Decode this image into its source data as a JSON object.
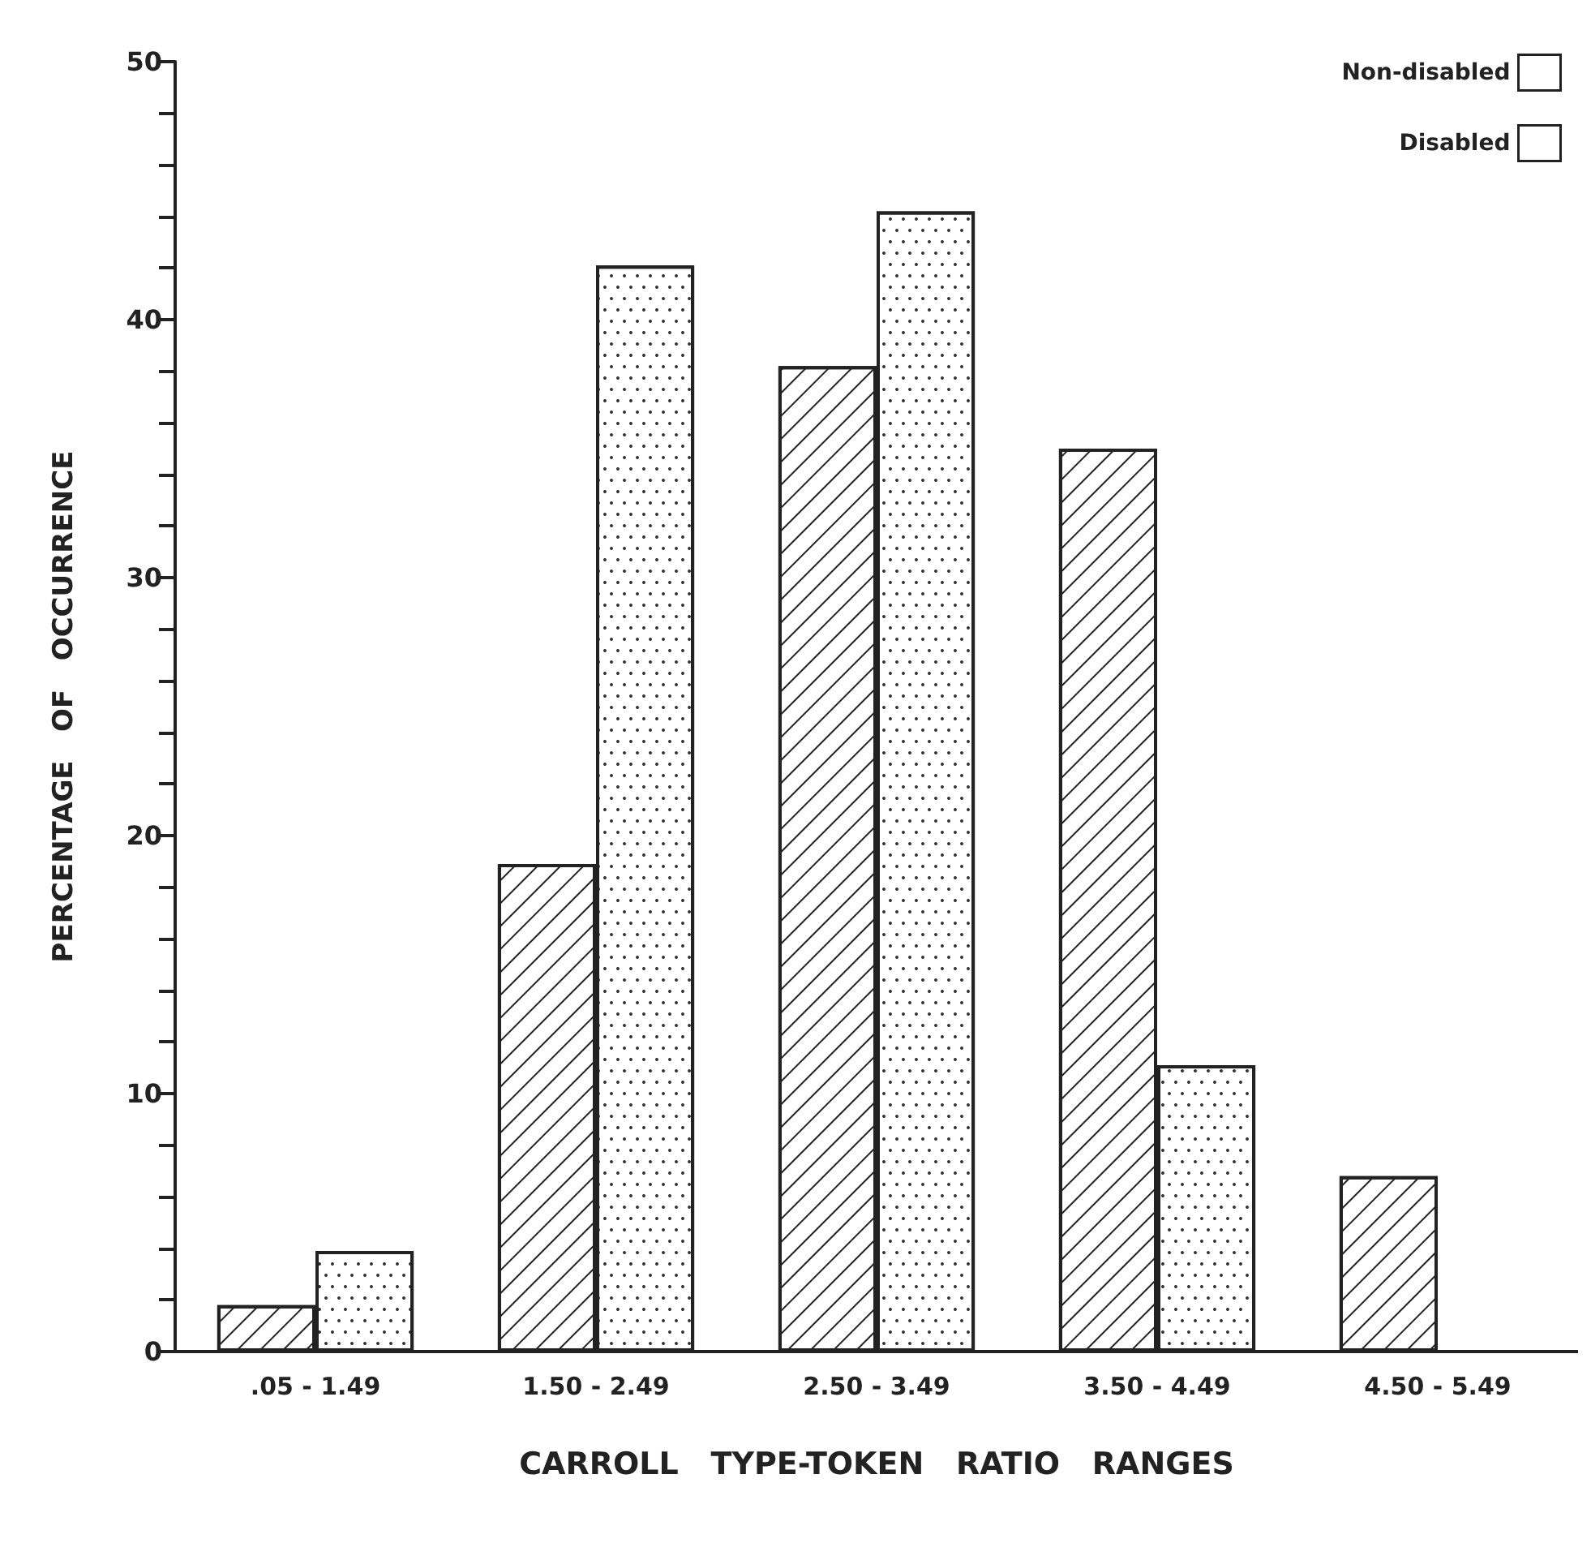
{
  "chart_data": {
    "type": "bar",
    "xlabel": "CARROLL   TYPE-TOKEN   RATIO   RANGES",
    "ylabel": "PERCENTAGE   OF   OCCURRENCE",
    "categories": [
      ".05 - 1.49",
      "1.50 - 2.49",
      "2.50 - 3.49",
      "3.50 - 4.49",
      "4.50 - 5.49"
    ],
    "series": [
      {
        "name": "Non-disabled",
        "color": "#ffffff",
        "values": [
          1.8,
          18.9,
          38.2,
          35.0,
          6.8
        ]
      },
      {
        "name": "Disabled",
        "color": "#ffffff",
        "values": [
          3.9,
          42.1,
          44.2,
          11.1,
          0
        ]
      }
    ],
    "ylim": [
      0,
      50
    ],
    "yticks": [
      0,
      {
        "value": 2,
        "label": null
      },
      {
        "value": 4,
        "label": null
      },
      {
        "value": 6,
        "label": null
      },
      {
        "value": 8,
        "label": null
      },
      10,
      {
        "value": 12,
        "label": null
      },
      {
        "value": 14,
        "label": null
      },
      {
        "value": 16,
        "label": null
      },
      {
        "value": 18,
        "label": null
      },
      20,
      {
        "value": 22,
        "label": null
      },
      {
        "value": 24,
        "label": null
      },
      {
        "value": 26,
        "label": null
      },
      {
        "value": 28,
        "label": null
      },
      30,
      {
        "value": 32,
        "label": null
      },
      {
        "value": 34,
        "label": null
      },
      {
        "value": 36,
        "label": null
      },
      {
        "value": 38,
        "label": null
      },
      40,
      {
        "value": 42,
        "label": null
      },
      {
        "value": 44,
        "label": null
      },
      {
        "value": 46,
        "label": null
      },
      {
        "value": 48,
        "label": null
      },
      50
    ],
    "grid": false,
    "legend": "top right"
  }
}
